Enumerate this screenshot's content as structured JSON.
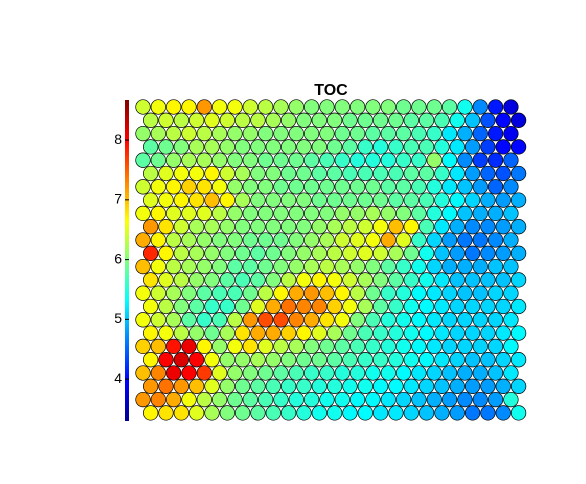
{
  "chart_data": {
    "type": "hexgrid",
    "title": "TOC",
    "colormap": "jet",
    "ylim": [
      3.3,
      8.67
    ],
    "yticks": [
      4,
      5,
      6,
      7,
      8
    ],
    "values": [
      [
        6.4,
        6.6,
        6.7,
        6.7,
        7.2,
        6.6,
        6.6,
        6.4,
        6.3,
        6.2,
        6.1,
        6.0,
        6.0,
        6.0,
        6.0,
        6.0,
        6.0,
        5.9,
        5.9,
        5.9,
        5.8,
        5.4,
        4.7,
        4.1,
        3.8
      ],
      [
        6.3,
        6.4,
        6.3,
        6.4,
        6.5,
        6.4,
        6.3,
        6.3,
        6.2,
        6.1,
        6.0,
        6.0,
        6.0,
        5.9,
        5.9,
        5.9,
        5.9,
        5.8,
        5.8,
        5.7,
        5.4,
        5.0,
        4.4,
        4.0,
        3.8
      ],
      [
        6.1,
        6.2,
        6.3,
        6.4,
        6.3,
        6.2,
        6.1,
        6.1,
        6.0,
        6.0,
        6.0,
        6.0,
        6.0,
        5.9,
        5.9,
        5.8,
        5.8,
        5.8,
        5.7,
        5.6,
        5.2,
        4.9,
        4.5,
        4.1,
        3.9
      ],
      [
        5.8,
        5.9,
        6.0,
        6.2,
        6.2,
        6.1,
        6.0,
        6.0,
        6.0,
        6.0,
        6.0,
        6.0,
        5.9,
        5.8,
        5.6,
        5.5,
        5.6,
        5.7,
        5.7,
        5.5,
        5.2,
        4.8,
        4.3,
        4.0,
        4.0
      ],
      [
        5.8,
        5.9,
        6.1,
        6.2,
        6.2,
        6.1,
        6.0,
        6.0,
        5.9,
        5.9,
        5.9,
        5.8,
        5.7,
        5.6,
        5.5,
        5.5,
        5.5,
        5.6,
        5.6,
        6.1,
        5.3,
        4.7,
        4.3,
        4.2,
        4.5
      ],
      [
        6.3,
        6.5,
        6.6,
        6.6,
        6.7,
        6.4,
        6.2,
        6.0,
        6.0,
        5.9,
        5.9,
        5.8,
        5.8,
        5.7,
        5.7,
        5.7,
        5.7,
        5.8,
        5.8,
        5.6,
        5.2,
        4.8,
        4.5,
        4.4,
        4.6
      ],
      [
        6.4,
        6.6,
        6.7,
        6.9,
        6.8,
        6.6,
        6.1,
        6.0,
        6.0,
        5.9,
        5.9,
        5.9,
        5.9,
        5.9,
        5.9,
        5.9,
        5.8,
        5.8,
        5.7,
        5.5,
        5.2,
        5.0,
        4.8,
        4.5,
        4.7
      ],
      [
        6.5,
        6.6,
        6.7,
        6.8,
        7.0,
        6.7,
        6.2,
        6.0,
        6.0,
        6.0,
        6.0,
        5.9,
        5.9,
        5.9,
        5.9,
        5.9,
        5.8,
        5.8,
        5.7,
        5.5,
        5.3,
        5.1,
        4.9,
        4.8,
        4.9
      ],
      [
        6.6,
        6.7,
        6.5,
        6.5,
        6.5,
        6.3,
        6.1,
        6.0,
        6.0,
        6.0,
        6.0,
        6.0,
        6.0,
        6.1,
        6.1,
        6.2,
        6.1,
        6.0,
        5.8,
        5.5,
        5.3,
        5.0,
        4.9,
        4.9,
        5.0
      ],
      [
        7.2,
        6.8,
        6.4,
        6.2,
        6.2,
        6.1,
        6.0,
        6.0,
        6.0,
        6.0,
        6.0,
        6.1,
        6.2,
        6.3,
        6.4,
        6.6,
        7.0,
        6.7,
        5.7,
        5.2,
        4.9,
        4.7,
        4.7,
        4.8,
        4.9
      ],
      [
        7.1,
        6.7,
        6.3,
        6.2,
        6.1,
        6.0,
        6.0,
        5.9,
        5.9,
        5.9,
        6.0,
        6.1,
        6.2,
        6.4,
        6.5,
        6.6,
        7.1,
        6.5,
        5.6,
        5.1,
        4.8,
        4.6,
        4.6,
        4.7,
        4.9
      ],
      [
        7.8,
        6.7,
        6.3,
        6.2,
        6.1,
        6.0,
        5.9,
        5.8,
        5.9,
        6.0,
        6.1,
        6.2,
        6.3,
        6.4,
        6.5,
        6.4,
        6.2,
        5.9,
        5.4,
        5.0,
        4.8,
        4.6,
        4.7,
        4.8,
        4.9
      ],
      [
        7.0,
        6.6,
        6.3,
        6.2,
        6.1,
        6.0,
        5.8,
        5.8,
        5.9,
        6.0,
        6.1,
        6.2,
        6.3,
        6.2,
        6.1,
        6.0,
        5.8,
        5.6,
        5.4,
        5.1,
        4.9,
        4.9,
        4.9,
        5.0,
        5.0
      ],
      [
        6.8,
        6.5,
        6.3,
        6.1,
        6.0,
        5.8,
        5.7,
        5.8,
        6.0,
        6.3,
        6.6,
        6.7,
        6.6,
        6.4,
        6.2,
        6.0,
        5.8,
        5.6,
        5.4,
        5.2,
        5.0,
        5.0,
        5.0,
        5.0,
        5.1
      ],
      [
        6.6,
        6.4,
        6.2,
        6.0,
        5.8,
        5.7,
        5.7,
        5.9,
        6.3,
        6.7,
        7.1,
        7.2,
        7.0,
        6.7,
        6.3,
        5.9,
        5.6,
        5.5,
        5.3,
        5.2,
        5.1,
        5.0,
        5.0,
        5.1,
        5.1
      ],
      [
        6.6,
        6.3,
        6.0,
        5.8,
        5.6,
        5.6,
        5.9,
        6.5,
        7.1,
        7.4,
        7.3,
        7.3,
        6.9,
        6.6,
        6.2,
        5.8,
        5.6,
        5.4,
        5.3,
        5.2,
        5.1,
        5.1,
        5.1,
        5.1,
        5.2
      ],
      [
        6.6,
        6.4,
        6.2,
        5.8,
        5.6,
        5.7,
        6.3,
        7.2,
        7.6,
        7.6,
        7.3,
        7.1,
        6.8,
        6.6,
        6.0,
        5.7,
        5.5,
        5.4,
        5.3,
        5.2,
        5.1,
        5.1,
        5.1,
        5.1,
        5.2
      ],
      [
        6.7,
        6.6,
        6.3,
        6.1,
        5.9,
        6.2,
        6.8,
        7.1,
        7.1,
        6.9,
        6.7,
        6.5,
        6.2,
        5.9,
        5.7,
        5.6,
        5.5,
        5.4,
        5.3,
        5.2,
        5.1,
        5.1,
        5.1,
        5.2,
        5.3
      ],
      [
        6.9,
        7.0,
        7.9,
        8.1,
        6.7,
        6.1,
        6.6,
        6.8,
        6.5,
        6.3,
        6.2,
        6.0,
        5.9,
        5.8,
        5.7,
        5.6,
        5.5,
        5.4,
        5.3,
        5.2,
        5.1,
        5.1,
        5.1,
        5.1,
        5.3
      ],
      [
        6.7,
        8.0,
        8.2,
        8.0,
        6.6,
        6.1,
        6.1,
        6.2,
        6.1,
        6.0,
        5.9,
        5.9,
        5.8,
        5.7,
        5.6,
        5.6,
        5.5,
        5.4,
        5.3,
        5.2,
        5.1,
        5.0,
        5.0,
        5.1,
        5.2
      ],
      [
        7.0,
        7.3,
        8.1,
        8.0,
        7.7,
        6.5,
        6.1,
        6.0,
        5.9,
        5.8,
        5.7,
        5.6,
        5.6,
        5.5,
        5.5,
        5.4,
        5.4,
        5.3,
        5.2,
        5.1,
        5.0,
        4.9,
        4.9,
        5.0,
        5.2
      ],
      [
        7.2,
        7.4,
        7.2,
        7.0,
        6.5,
        6.1,
        5.9,
        5.8,
        5.7,
        5.6,
        5.6,
        5.5,
        5.5,
        5.4,
        5.4,
        5.3,
        5.3,
        5.2,
        5.1,
        5.0,
        4.9,
        4.8,
        4.8,
        4.9,
        5.1
      ],
      [
        7.2,
        7.3,
        7.1,
        6.6,
        6.3,
        6.1,
        5.9,
        5.8,
        5.7,
        5.6,
        5.5,
        5.5,
        5.4,
        5.4,
        5.3,
        5.3,
        5.2,
        5.1,
        5.0,
        4.9,
        4.8,
        4.7,
        4.7,
        4.8,
        5.5
      ],
      [
        6.7,
        6.8,
        6.8,
        6.5,
        6.2,
        6.0,
        5.9,
        5.8,
        5.7,
        5.6,
        5.5,
        5.4,
        5.4,
        5.3,
        5.3,
        5.2,
        5.2,
        5.1,
        5.0,
        4.9,
        4.8,
        4.6,
        4.6,
        4.7,
        5.4
      ]
    ]
  }
}
